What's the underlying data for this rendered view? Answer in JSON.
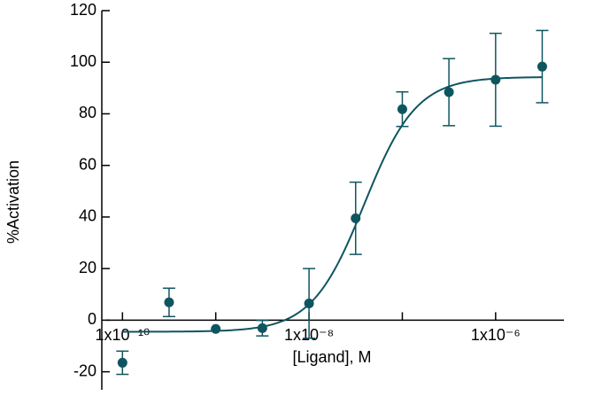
{
  "chart_data": {
    "type": "scatter",
    "x_label": "[Ligand], M",
    "y_label": "%Activation",
    "x": [
      1e-10,
      3.16e-10,
      1e-09,
      3.16e-09,
      1e-08,
      3.16e-08,
      1e-07,
      3.16e-07,
      1e-06,
      3.16e-06
    ],
    "series": [
      {
        "color": "#0f5560",
        "values": [
          -16.5,
          6.9,
          -3.4,
          -3.1,
          6.5,
          39.5,
          81.8,
          88.4,
          93.2,
          98.3
        ],
        "errors": [
          4.5,
          5.5,
          0,
          3,
          13.5,
          14,
          6.7,
          13,
          18,
          14
        ]
      }
    ],
    "fit": {
      "bottom": -4.5,
      "top": 94.3,
      "ec50": 3.9e-08,
      "hill": 1.55,
      "color": "#0f5560"
    },
    "xscale": "log",
    "xlim": [
      6.7e-11,
      5.4e-06
    ],
    "xticks": [
      {
        "value": 1e-10,
        "label": "1x10⁻¹⁰"
      },
      {
        "value": 1e-08,
        "label": "1x10⁻⁸"
      },
      {
        "value": 1e-06,
        "label": "1x10⁻⁶"
      }
    ],
    "xminorticks": [
      1e-09,
      1e-07
    ],
    "ylim": [
      -27,
      120
    ],
    "yticks": [
      -20,
      0,
      20,
      40,
      60,
      80,
      100,
      120
    ]
  }
}
